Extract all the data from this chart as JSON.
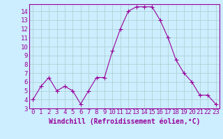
{
  "x": [
    0,
    1,
    2,
    3,
    4,
    5,
    6,
    7,
    8,
    9,
    10,
    11,
    12,
    13,
    14,
    15,
    16,
    17,
    18,
    19,
    20,
    21,
    22,
    23
  ],
  "y": [
    4.0,
    5.5,
    6.5,
    5.0,
    5.5,
    5.0,
    3.5,
    5.0,
    6.5,
    6.5,
    9.5,
    12.0,
    14.0,
    14.5,
    14.5,
    14.5,
    13.0,
    11.0,
    8.5,
    7.0,
    6.0,
    4.5,
    4.5,
    3.5
  ],
  "line_color": "#990099",
  "marker": "+",
  "marker_size": 4,
  "bg_color": "#cceeff",
  "grid_color": "#aacccc",
  "xlabel": "Windchill (Refroidissement éolien,°C)",
  "xlabel_color": "#990099",
  "xlabel_fontsize": 7,
  "tick_color": "#990099",
  "tick_fontsize": 6.5,
  "xlim": [
    -0.5,
    23.5
  ],
  "ylim": [
    3,
    14.8
  ],
  "yticks": [
    3,
    4,
    5,
    6,
    7,
    8,
    9,
    10,
    11,
    12,
    13,
    14
  ],
  "xticks": [
    0,
    1,
    2,
    3,
    4,
    5,
    6,
    7,
    8,
    9,
    10,
    11,
    12,
    13,
    14,
    15,
    16,
    17,
    18,
    19,
    20,
    21,
    22,
    23
  ]
}
